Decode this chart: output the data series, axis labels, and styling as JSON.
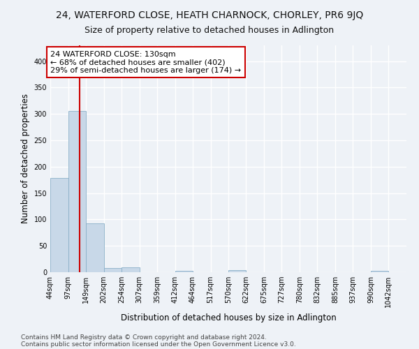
{
  "title": "24, WATERFORD CLOSE, HEATH CHARNOCK, CHORLEY, PR6 9JQ",
  "subtitle": "Size of property relative to detached houses in Adlington",
  "xlabel": "Distribution of detached houses by size in Adlington",
  "ylabel": "Number of detached properties",
  "bar_edges": [
    44,
    97,
    149,
    202,
    254,
    307,
    359,
    412,
    464,
    517,
    570,
    622,
    675,
    727,
    780,
    832,
    885,
    937,
    990,
    1042,
    1095
  ],
  "bar_heights": [
    178,
    305,
    93,
    8,
    9,
    0,
    0,
    3,
    0,
    0,
    4,
    0,
    0,
    0,
    0,
    0,
    0,
    0,
    3,
    0,
    0
  ],
  "bar_color": "#c8d8e8",
  "bar_edgecolor": "#8ab0c8",
  "property_line_x": 130,
  "property_line_color": "#cc0000",
  "annotation_text": "24 WATERFORD CLOSE: 130sqm\n← 68% of detached houses are smaller (402)\n29% of semi-detached houses are larger (174) →",
  "annotation_box_color": "#ffffff",
  "annotation_box_edgecolor": "#cc0000",
  "ylim": [
    0,
    430
  ],
  "yticks": [
    0,
    50,
    100,
    150,
    200,
    250,
    300,
    350,
    400
  ],
  "footer_line1": "Contains HM Land Registry data © Crown copyright and database right 2024.",
  "footer_line2": "Contains public sector information licensed under the Open Government Licence v3.0.",
  "background_color": "#eef2f7",
  "plot_bg_color": "#eef2f7",
  "grid_color": "#ffffff",
  "title_fontsize": 10,
  "subtitle_fontsize": 9,
  "label_fontsize": 8.5,
  "tick_fontsize": 7,
  "footer_fontsize": 6.5,
  "annotation_fontsize": 8
}
